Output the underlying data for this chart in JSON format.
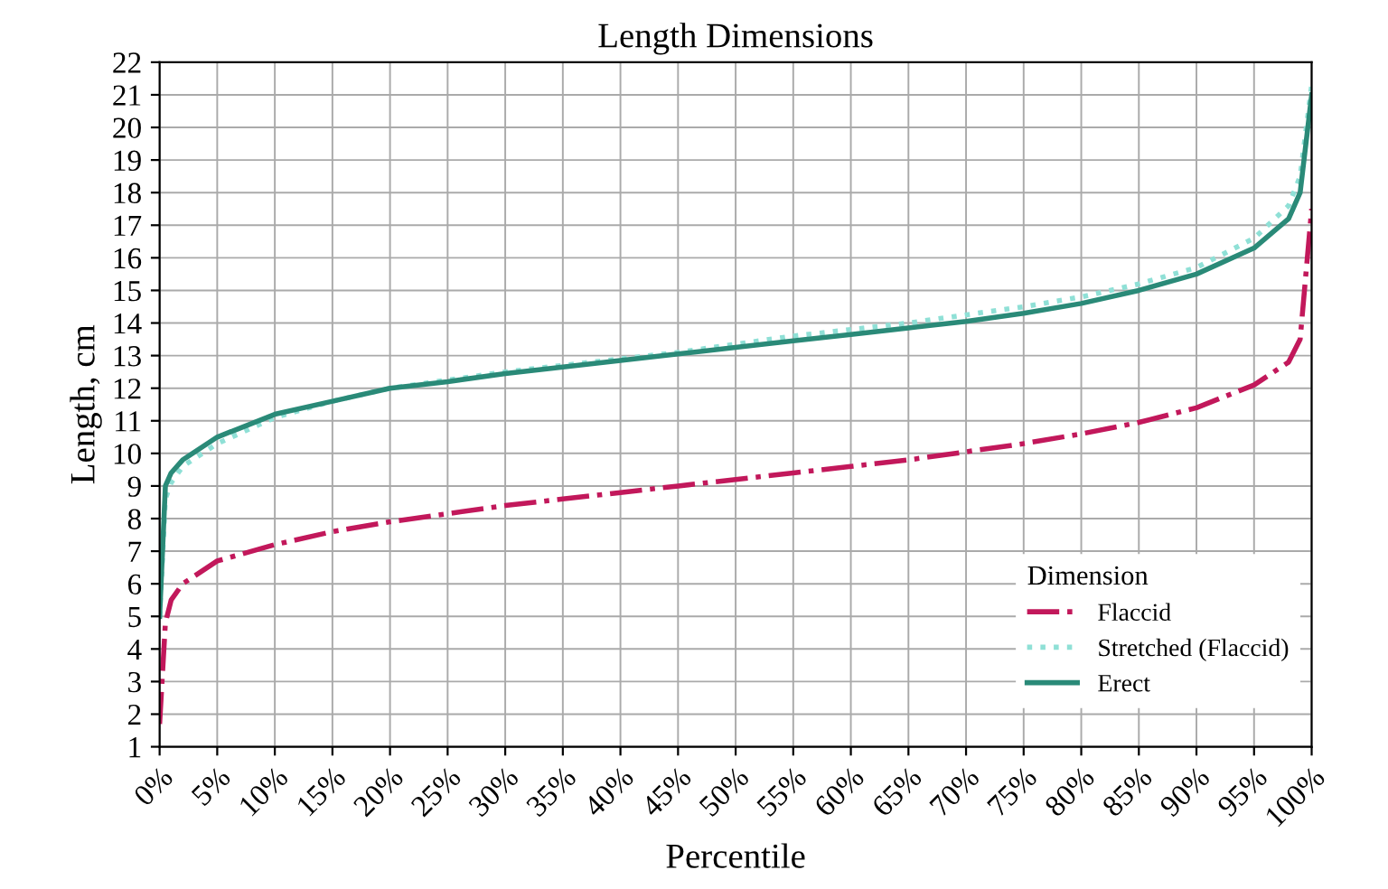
{
  "chart_data": {
    "type": "line",
    "title": "Length Dimensions",
    "xlabel": "Percentile",
    "ylabel": "Length, cm",
    "legend_title": "Dimension",
    "legend": "bottom right",
    "grid": true,
    "xlim": [
      0,
      100
    ],
    "ylim": [
      1,
      22
    ],
    "xticks": [
      {
        "value": 0,
        "label": "0%"
      },
      {
        "value": 5,
        "label": "5%"
      },
      {
        "value": 10,
        "label": "10%"
      },
      {
        "value": 15,
        "label": "15%"
      },
      {
        "value": 20,
        "label": "20%"
      },
      {
        "value": 25,
        "label": "25%"
      },
      {
        "value": 30,
        "label": "30%"
      },
      {
        "value": 35,
        "label": "35%"
      },
      {
        "value": 40,
        "label": "40%"
      },
      {
        "value": 45,
        "label": "45%"
      },
      {
        "value": 50,
        "label": "50%"
      },
      {
        "value": 55,
        "label": "55%"
      },
      {
        "value": 60,
        "label": "60%"
      },
      {
        "value": 65,
        "label": "65%"
      },
      {
        "value": 70,
        "label": "70%"
      },
      {
        "value": 75,
        "label": "75%"
      },
      {
        "value": 80,
        "label": "80%"
      },
      {
        "value": 85,
        "label": "85%"
      },
      {
        "value": 90,
        "label": "90%"
      },
      {
        "value": 95,
        "label": "95%"
      },
      {
        "value": 100,
        "label": "100%"
      }
    ],
    "yticks": [
      1,
      2,
      3,
      4,
      5,
      6,
      7,
      8,
      9,
      10,
      11,
      12,
      13,
      14,
      15,
      16,
      17,
      18,
      19,
      20,
      21,
      22
    ],
    "x": [
      0,
      0.5,
      1,
      2,
      5,
      10,
      15,
      20,
      25,
      30,
      35,
      40,
      45,
      50,
      55,
      60,
      65,
      70,
      75,
      80,
      85,
      90,
      95,
      98,
      99,
      100
    ],
    "series": [
      {
        "name": "Flaccid",
        "color": "#c2185b",
        "line_style": "dashed",
        "values": [
          1.7,
          4.8,
          5.5,
          6.0,
          6.7,
          7.2,
          7.6,
          7.9,
          8.15,
          8.4,
          8.6,
          8.8,
          9.0,
          9.2,
          9.4,
          9.6,
          9.8,
          10.05,
          10.3,
          10.6,
          10.95,
          11.4,
          12.1,
          12.8,
          13.5,
          17.5
        ]
      },
      {
        "name": "Stretched (Flaccid)",
        "color": "#8fe0d6",
        "line_style": "dotted",
        "values": [
          5.0,
          8.6,
          9.1,
          9.6,
          10.3,
          11.1,
          11.6,
          12.0,
          12.25,
          12.5,
          12.7,
          12.9,
          13.1,
          13.35,
          13.6,
          13.8,
          14.0,
          14.25,
          14.5,
          14.8,
          15.2,
          15.7,
          16.6,
          17.6,
          18.5,
          21.3
        ]
      },
      {
        "name": "Erect",
        "color": "#2a8a78",
        "line_style": "solid",
        "values": [
          5.0,
          9.0,
          9.4,
          9.8,
          10.5,
          11.2,
          11.6,
          12.0,
          12.2,
          12.45,
          12.65,
          12.85,
          13.05,
          13.25,
          13.45,
          13.65,
          13.85,
          14.05,
          14.3,
          14.6,
          15.0,
          15.5,
          16.3,
          17.2,
          18.0,
          21.0
        ]
      }
    ]
  }
}
